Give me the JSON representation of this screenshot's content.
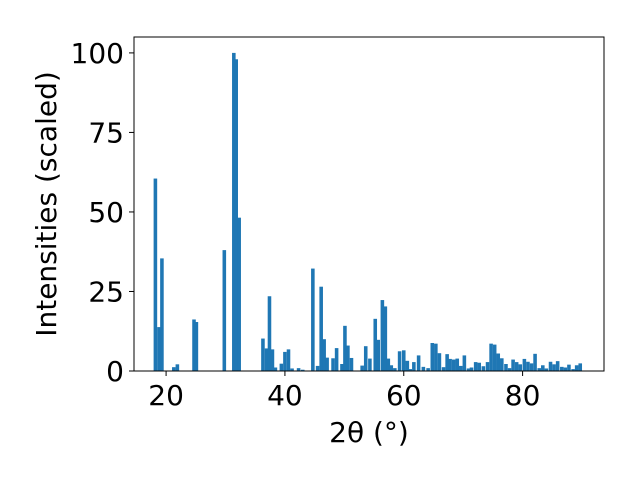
{
  "chart_data": {
    "type": "bar",
    "title": "",
    "xlabel": "2θ (°)",
    "ylabel": "Intensities (scaled)",
    "xlim": [
      14.6,
      93.7
    ],
    "ylim": [
      0,
      105
    ],
    "xticks": [
      20,
      40,
      60,
      80
    ],
    "yticks": [
      0,
      25,
      50,
      75,
      100
    ],
    "grid": false,
    "legend": null,
    "color": "#1f77b4",
    "bar_width": 0.6,
    "x": [
      18.2,
      18.8,
      19.3,
      21.3,
      21.9,
      24.7,
      25.1,
      29.8,
      31.4,
      31.8,
      32.3,
      36.3,
      36.9,
      37.4,
      37.9,
      38.4,
      39.4,
      40.0,
      40.6,
      41.2,
      42.3,
      43.0,
      44.7,
      45.5,
      46.1,
      46.6,
      47.1,
      48.1,
      48.7,
      49.6,
      50.1,
      50.6,
      51.2,
      53.0,
      53.6,
      54.3,
      55.2,
      55.7,
      56.4,
      56.9,
      57.4,
      57.9,
      58.5,
      59.3,
      60.0,
      60.6,
      61.1,
      61.7,
      62.5,
      63.3,
      64.1,
      64.8,
      65.4,
      66.0,
      66.7,
      67.3,
      67.8,
      68.4,
      69.0,
      69.6,
      70.2,
      70.9,
      71.4,
      72.1,
      72.7,
      73.4,
      74.1,
      74.7,
      75.3,
      75.9,
      76.5,
      77.2,
      77.8,
      78.4,
      79.0,
      79.6,
      80.3,
      80.9,
      81.5,
      82.1,
      82.8,
      83.4,
      84.0,
      84.7,
      85.3,
      85.9,
      86.6,
      87.2,
      87.8,
      88.5,
      89.1,
      89.7
    ],
    "values": [
      60.5,
      13.8,
      35.4,
      1.2,
      2.1,
      16.2,
      15.4,
      38,
      100,
      98,
      48.2,
      10.2,
      7.1,
      23.5,
      6.8,
      1.1,
      2.3,
      6,
      6.8,
      0.8,
      0.9,
      0.4,
      32.2,
      1.6,
      26.5,
      10,
      4.2,
      4,
      7.2,
      2.2,
      14.2,
      8,
      4.1,
      1.7,
      7.8,
      3.9,
      16.4,
      9.8,
      22.3,
      20.3,
      3.9,
      1.8,
      0.9,
      6.2,
      6.5,
      3.2,
      0.6,
      2.8,
      4.9,
      1.3,
      0.9,
      8.8,
      8.6,
      5.6,
      1.2,
      5.3,
      3.8,
      3.6,
      3.9,
      1.6,
      4.9,
      0.8,
      1.1,
      2.8,
      2.6,
      1.5,
      2.8,
      8.6,
      8.3,
      5.5,
      4,
      2.2,
      0.9,
      3.6,
      2.8,
      2.1,
      3.8,
      2.9,
      2.4,
      5.4,
      0.9,
      1.8,
      0.8,
      2.9,
      2.1,
      3.1,
      1.3,
      1.1,
      2,
      0.6,
      1.8,
      2.4
    ]
  }
}
